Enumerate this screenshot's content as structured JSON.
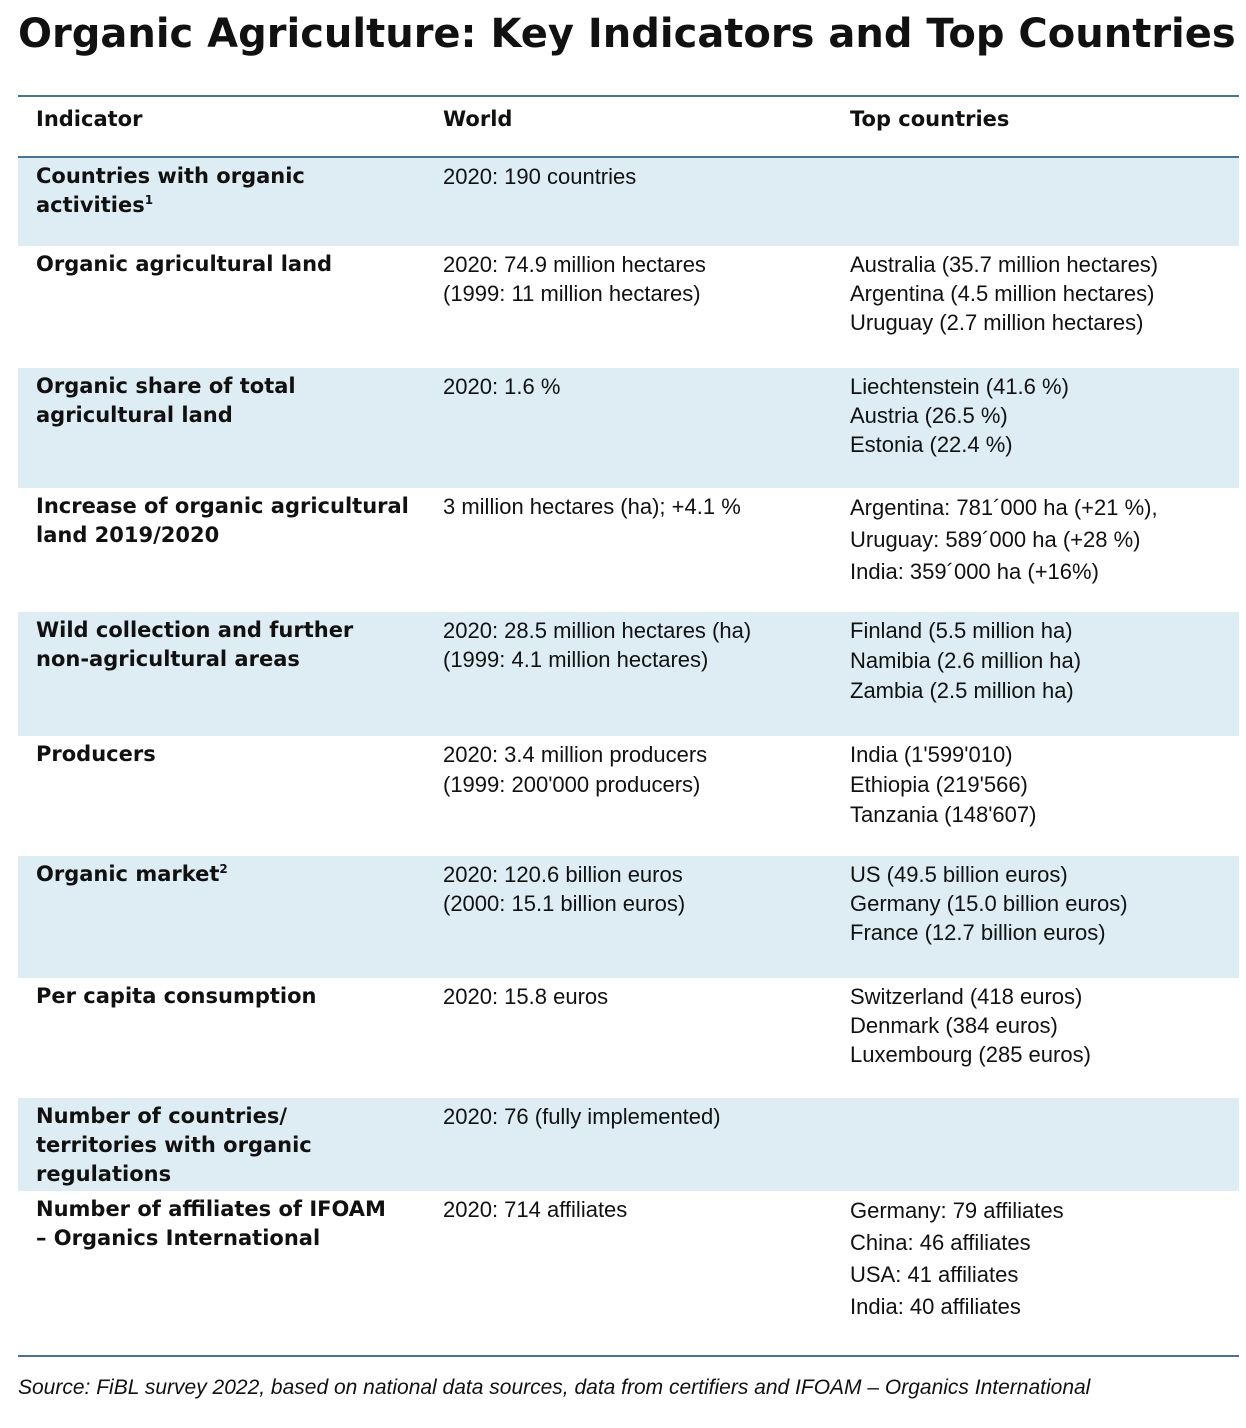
{
  "title": "Organic Agriculture: Key Indicators and Top Countries",
  "headers": [
    "Indicator",
    "World",
    "Top countries"
  ],
  "rows": [
    {
      "indicator": [
        "Countries with organic",
        "activities"
      ],
      "indicator_sup": "1",
      "world": [
        "2020: 190 countries"
      ],
      "top": []
    },
    {
      "indicator": [
        "Organic agricultural land"
      ],
      "indicator_sup": "",
      "world": [
        "2020: 74.9 million hectares",
        "(1999: 11 million hectares)"
      ],
      "top": [
        "Australia (35.7 million hectares)",
        "Argentina (4.5 million hectares)",
        "Uruguay (2.7 million hectares)"
      ]
    },
    {
      "indicator": [
        "Organic share of total",
        "agricultural land"
      ],
      "indicator_sup": "",
      "world": [
        "2020: 1.6 %"
      ],
      "top": [
        "Liechtenstein (41.6 %)",
        "Austria (26.5 %)",
        "Estonia (22.4 %)"
      ]
    },
    {
      "indicator": [
        "Increase of organic agricultural",
        "land 2019/2020"
      ],
      "indicator_sup": "",
      "world": [
        "3 million hectares (ha); +4.1 %"
      ],
      "top": [
        "Argentina: 781´000 ha (+21 %),",
        "Uruguay: 589´000 ha (+28 %)",
        "India: 359´000 ha (+16%)"
      ]
    },
    {
      "indicator": [
        "Wild collection and further",
        "non-agricultural areas"
      ],
      "indicator_sup": "",
      "world": [
        "2020: 28.5 million hectares (ha)",
        "(1999: 4.1 million hectares)"
      ],
      "top": [
        "Finland (5.5 million ha)",
        "Namibia (2.6 million ha)",
        "Zambia (2.5 million ha)"
      ]
    },
    {
      "indicator": [
        "Producers"
      ],
      "indicator_sup": "",
      "world": [
        "2020: 3.4 million producers",
        "(1999: 200'000 producers)"
      ],
      "top": [
        "India (1'599'010)",
        "Ethiopia (219'566)",
        "Tanzania (148'607)"
      ]
    },
    {
      "indicator": [
        "Organic market"
      ],
      "indicator_sup": "2",
      "world": [
        "2020: 120.6 billion euros",
        "(2000: 15.1 billion euros)"
      ],
      "top": [
        "US (49.5 billion euros)",
        "Germany (15.0 billion euros)",
        "France (12.7 billion euros)"
      ]
    },
    {
      "indicator": [
        "Per capita consumption"
      ],
      "indicator_sup": "",
      "world": [
        "2020: 15.8 euros"
      ],
      "top": [
        "Switzerland (418 euros)",
        "Denmark (384 euros)",
        "Luxembourg (285 euros)"
      ]
    },
    {
      "indicator": [
        "Number of countries/",
        "territories with organic",
        "regulations"
      ],
      "indicator_sup": "",
      "world": [
        "2020: 76 (fully implemented)"
      ],
      "top": []
    },
    {
      "indicator": [
        "Number of affiliates of IFOAM",
        "– Organics International"
      ],
      "indicator_sup": "",
      "world": [
        "2020: 714 affiliates"
      ],
      "top": [
        "Germany: 79 affiliates",
        "China: 46 affiliates",
        "USA: 41 affiliates",
        "India: 40 affiliates"
      ]
    }
  ],
  "source": "Source: FiBL survey 2022, based on national data sources, data from certifiers and IFOAM – Organics International",
  "colors": {
    "rule": "#4a7390",
    "shade": "#deedf4"
  }
}
